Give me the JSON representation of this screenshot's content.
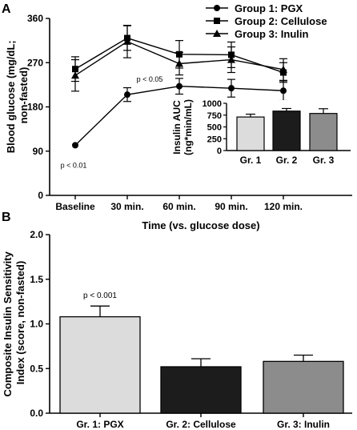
{
  "chart_data": [
    {
      "panel_label": "A",
      "type": "line",
      "xlabel": "Time (vs. glucose dose)",
      "ylabel": "Blood glucose (mg/dL;\nnon-fasted)",
      "categories": [
        "Baseline",
        "30 min.",
        "60 min.",
        "90 min.",
        "120 min."
      ],
      "ylim": [
        0,
        360
      ],
      "yticks": [
        "0",
        "90",
        "180",
        "270",
        "360"
      ],
      "legend_position": "top-right",
      "series": [
        {
          "name": "Group 1: PGX",
          "marker": "circle",
          "values": [
            102,
            205,
            222,
            218,
            213
          ],
          "errors": [
            0,
            14,
            16,
            18,
            20
          ]
        },
        {
          "name": "Group 2: Cellulose",
          "marker": "square",
          "values": [
            257,
            320,
            287,
            286,
            250
          ],
          "errors": [
            25,
            25,
            28,
            26,
            20
          ]
        },
        {
          "name": "Group 3: Inulin",
          "marker": "triangle",
          "values": [
            244,
            313,
            268,
            276,
            256
          ],
          "errors": [
            32,
            33,
            23,
            26,
            22
          ]
        }
      ],
      "annotations": [
        {
          "category": "Baseline",
          "text": "p < 0.01"
        },
        {
          "category": "30 min.",
          "text": "p < 0.05"
        }
      ],
      "inset": {
        "type": "bar",
        "ylabel": "Insulin AUC\n(ng*min/mL)",
        "ylim": [
          0,
          1000
        ],
        "yticks": [
          "0",
          "250",
          "500",
          "750",
          "1000"
        ],
        "categories": [
          "Gr. 1",
          "Gr. 2",
          "Gr. 3"
        ],
        "values": [
          710,
          835,
          785
        ],
        "errors": [
          60,
          55,
          100
        ],
        "colors": [
          "#dcdcdc",
          "#1c1c1c",
          "#8c8c8c"
        ]
      }
    },
    {
      "panel_label": "B",
      "type": "bar",
      "ylabel": "Composite Insulin Sensitivity\nIndex (score, non-fasted)",
      "ylim": [
        0,
        2.0
      ],
      "yticks": [
        "0.0",
        "0.5",
        "1.0",
        "1.5",
        "2.0"
      ],
      "categories": [
        "Gr. 1: PGX",
        "Gr. 2: Cellulose",
        "Gr. 3: Inulin"
      ],
      "values": [
        1.08,
        0.52,
        0.58
      ],
      "errors": [
        0.12,
        0.09,
        0.07
      ],
      "colors": [
        "#dcdcdc",
        "#1c1c1c",
        "#8c8c8c"
      ],
      "annotations": [
        {
          "category": "Gr. 1: PGX",
          "text": "p < 0.001"
        }
      ]
    }
  ]
}
